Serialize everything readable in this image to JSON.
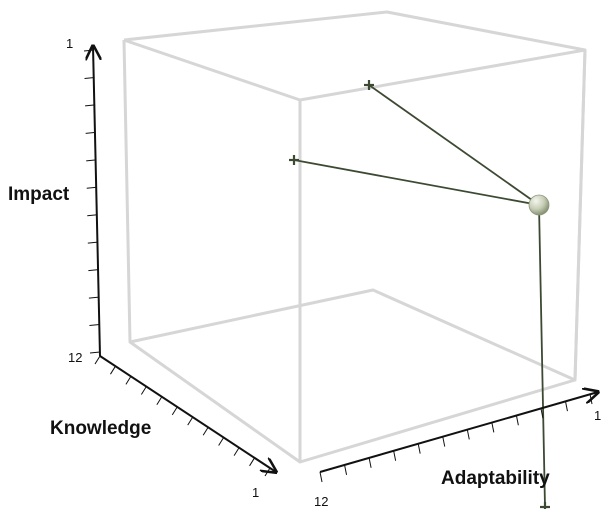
{
  "chart_data": {
    "type": "scatter",
    "projection": "3d",
    "title": "",
    "axes": {
      "x": {
        "label": "Adaptability",
        "range": [
          12,
          1
        ],
        "tick_labels": [
          "12",
          "1"
        ],
        "ticks": 12
      },
      "y": {
        "label": "Knowledge",
        "range": [
          1,
          12
        ],
        "tick_labels": [
          "1"
        ],
        "ticks": 12
      },
      "z": {
        "label": "Impact",
        "range": [
          12,
          1
        ],
        "tick_labels": [
          "12",
          "1"
        ],
        "ticks": 12
      }
    },
    "points": [
      {
        "adaptability": 1,
        "knowledge": 12,
        "impact": 1
      }
    ],
    "projection_lines": true,
    "grid": false,
    "colors": {
      "point": "#c8cfb8",
      "lines": "#3d4a33",
      "box": "#d6d6d6",
      "axes": "#111111"
    }
  }
}
